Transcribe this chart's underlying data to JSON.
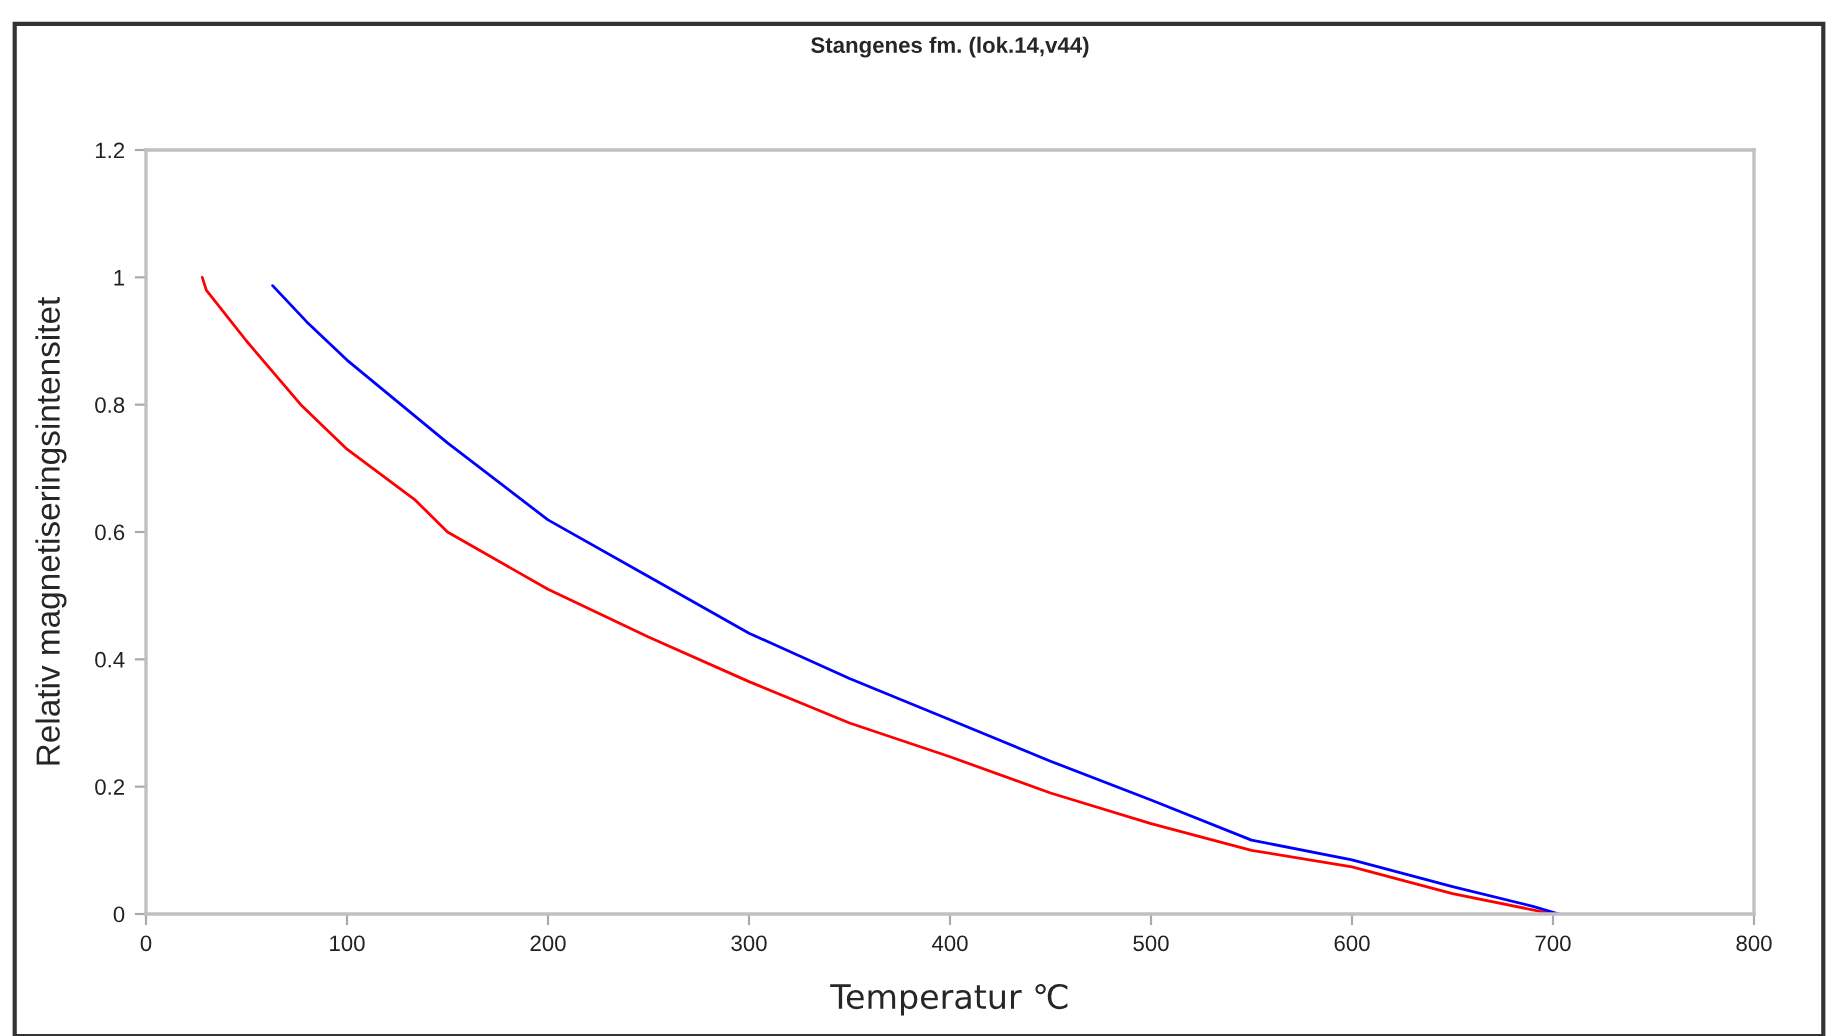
{
  "chart_data": {
    "type": "line",
    "title": "Stangenes fm. (lok.14,v44)",
    "xlabel": "Temperatur ℃",
    "ylabel": "Relativ magnetiseringsintensitet",
    "xlim": [
      0,
      800
    ],
    "xticks": [
      0,
      100,
      200,
      300,
      400,
      500,
      600,
      700,
      800
    ],
    "ylim": [
      0,
      1.2
    ],
    "yticks": [
      0,
      0.2,
      0.4,
      0.6,
      0.8,
      1,
      1.2
    ],
    "grid": false,
    "legend": false,
    "marker": "none",
    "line_style": "solid",
    "series": [
      {
        "color": "#ff0000",
        "x": [
          28,
          30,
          50,
          77,
          100,
          134,
          150,
          200,
          250,
          300,
          350,
          400,
          450,
          500,
          550,
          600,
          650,
          700
        ],
        "values": [
          1.0,
          0.98,
          0.9,
          0.8,
          0.73,
          0.65,
          0.6,
          0.51,
          0.435,
          0.365,
          0.3,
          0.247,
          0.19,
          0.142,
          0.1,
          0.074,
          0.032,
          0.0
        ]
      },
      {
        "color": "#0000ff",
        "x": [
          63,
          80,
          100,
          150,
          200,
          250,
          300,
          350,
          400,
          450,
          500,
          550,
          600,
          650,
          690,
          703
        ],
        "values": [
          0.987,
          0.93,
          0.87,
          0.74,
          0.619,
          0.53,
          0.441,
          0.37,
          0.305,
          0.24,
          0.179,
          0.116,
          0.085,
          0.043,
          0.012,
          0.0
        ]
      }
    ]
  }
}
